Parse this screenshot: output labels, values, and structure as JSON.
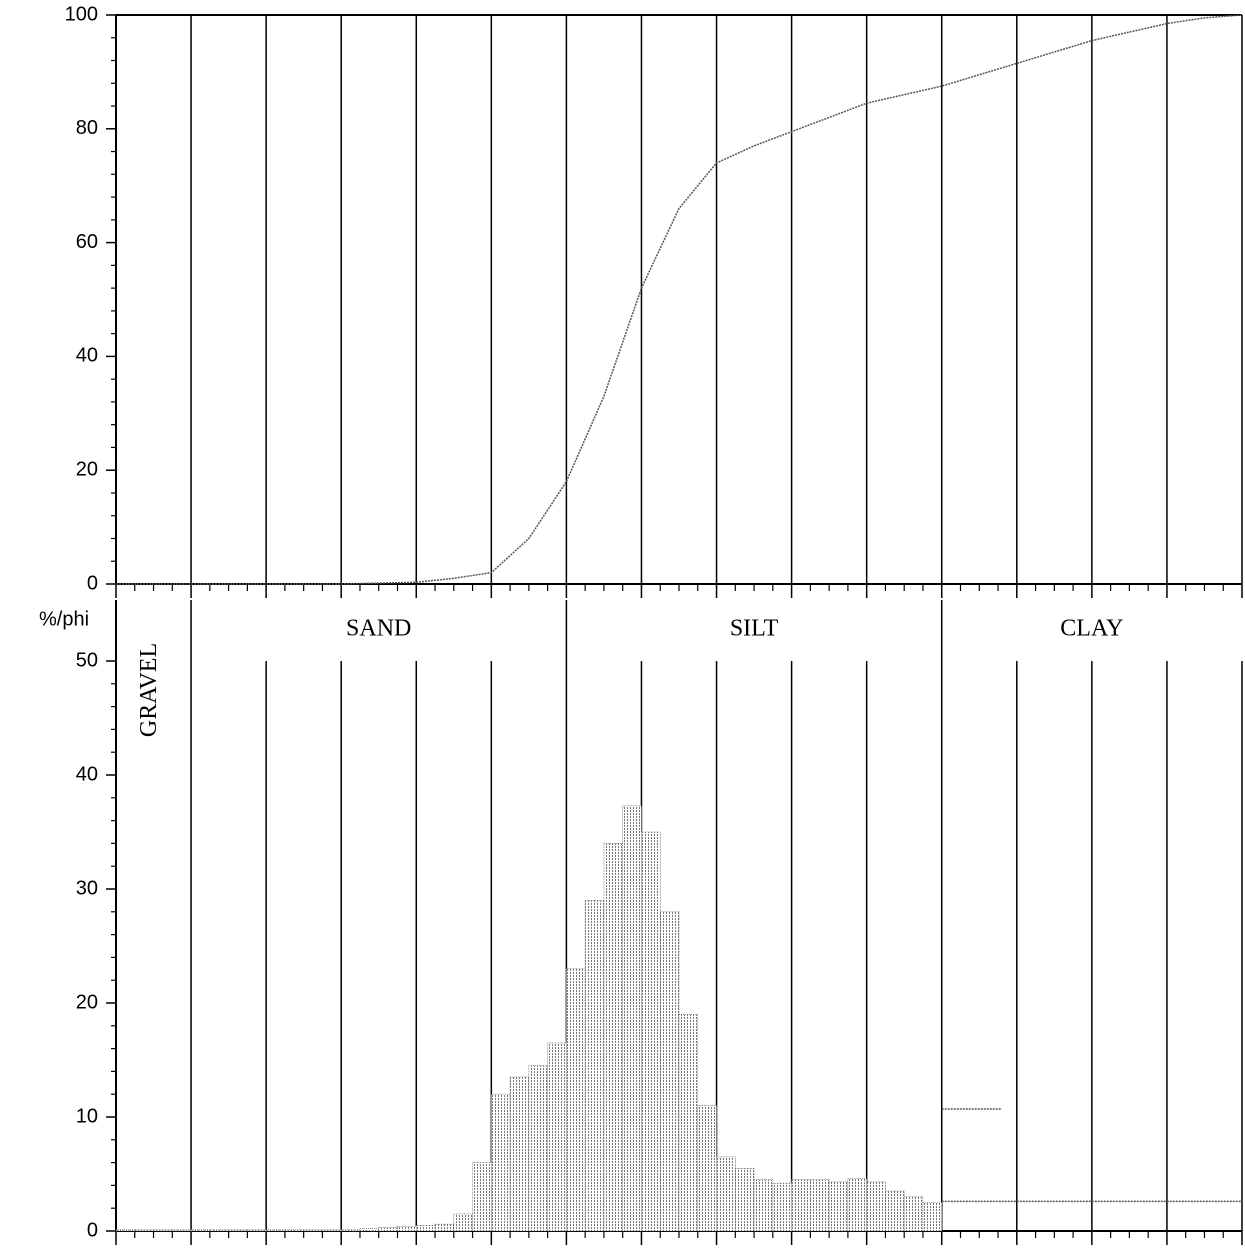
{
  "chart_data": [
    {
      "type": "line",
      "xlim": [
        -2,
        13
      ],
      "xticks": [
        -2,
        -1,
        0,
        1,
        2,
        3,
        4,
        5,
        6,
        7,
        8,
        9,
        10,
        11,
        12,
        13
      ],
      "ylim": [
        0,
        100
      ],
      "yticks": [
        0,
        20,
        40,
        60,
        80,
        100
      ],
      "grid": true,
      "color": "#555555",
      "x": [
        -2,
        -1,
        0,
        1,
        2,
        2.5,
        3,
        3.5,
        4,
        4.5,
        5,
        5.5,
        6,
        6.5,
        7,
        7.5,
        8,
        8.5,
        9,
        9.5,
        10,
        10.5,
        11,
        11.5,
        12,
        12.5,
        13
      ],
      "values": [
        0,
        0,
        0,
        0,
        0.3,
        1,
        2,
        8,
        18,
        33,
        52,
        66,
        74,
        77,
        79.5,
        82,
        84.5,
        86,
        87.5,
        89.5,
        91.5,
        93.5,
        95.5,
        97,
        98.5,
        99.5,
        100
      ]
    },
    {
      "type": "histogram",
      "y_label": "%/phi",
      "xlim": [
        -2,
        13
      ],
      "xticks": [
        -2,
        -1,
        0,
        1,
        2,
        3,
        4,
        5,
        6,
        7,
        8,
        9,
        10,
        11,
        12,
        13
      ],
      "ylim": [
        0,
        50
      ],
      "yticks": [
        0,
        10,
        20,
        30,
        40,
        50
      ],
      "grid": true,
      "color": "#555555",
      "classes": [
        {
          "label": "GRAVEL",
          "x": [
            -2,
            -1
          ]
        },
        {
          "label": "SAND",
          "x": [
            -1,
            4
          ]
        },
        {
          "label": "SILT",
          "x": [
            4,
            9
          ]
        },
        {
          "label": "CLAY",
          "x": [
            9,
            13
          ]
        }
      ],
      "bins": [
        -2,
        -1.75,
        -1.5,
        -1.25,
        -1,
        -0.75,
        -0.5,
        -0.25,
        0,
        0.25,
        0.5,
        0.75,
        1,
        1.25,
        1.5,
        1.75,
        2,
        2.25,
        2.5,
        2.75,
        3,
        3.25,
        3.5,
        3.75,
        4,
        4.25,
        4.5,
        4.75,
        5,
        5.25,
        5.5,
        5.75,
        6,
        6.25,
        6.5,
        6.75,
        7,
        7.25,
        7.5,
        7.75,
        8,
        8.25,
        8.5,
        8.75,
        9
      ],
      "values": [
        0.1,
        0.1,
        0.1,
        0.1,
        0.1,
        0.1,
        0.1,
        0.1,
        0.1,
        0.1,
        0.1,
        0.1,
        0.1,
        0.2,
        0.3,
        0.4,
        0.5,
        0.6,
        1.5,
        6,
        12,
        13.5,
        14.5,
        16.5,
        23,
        29,
        34,
        37.3,
        35,
        28,
        19,
        11,
        6.5,
        5.5,
        4.5,
        4.2,
        4.5,
        4.5,
        4.3,
        4.6,
        4.3,
        3.5,
        3,
        2.5
      ],
      "levels": [
        {
          "x": [
            9,
            9.8
          ],
          "value": 10.7
        },
        {
          "x": [
            9,
            13
          ],
          "value": 2.6
        }
      ]
    }
  ]
}
